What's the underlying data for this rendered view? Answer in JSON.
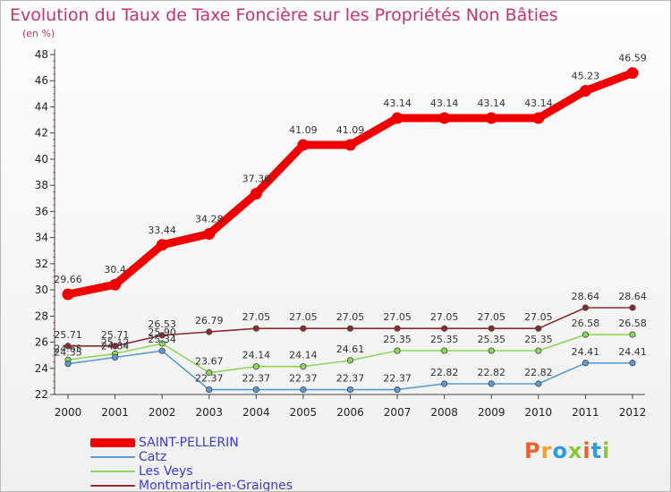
{
  "title": "Evolution du Taux de Taxe Foncière sur les Propriétés Non Bâties",
  "subtitle": "(en %)",
  "logo": {
    "text": "Proxiti",
    "colors": [
      "#e8622b",
      "#f0a32a",
      "#2d9be0",
      "#8cc63f",
      "#e8622b",
      "#2d9be0",
      "#8cc63f"
    ]
  },
  "chart_data": {
    "type": "line",
    "title": "Evolution du Taux de Taxe Foncière sur les Propriétés Non Bâties",
    "ylabel": "(en %)",
    "xlabel": "",
    "ylim": [
      22,
      48
    ],
    "y_ticks": [
      22,
      24,
      26,
      28,
      30,
      32,
      34,
      36,
      38,
      40,
      42,
      44,
      46,
      48
    ],
    "grid": false,
    "legend": "bottom-left",
    "categories": [
      "2000",
      "2001",
      "2002",
      "2003",
      "2004",
      "2005",
      "2006",
      "2007",
      "2008",
      "2009",
      "2010",
      "2011",
      "2012"
    ],
    "series": [
      {
        "name": "SAINT-PELLERIN",
        "color": "#ee0000",
        "values": [
          29.66,
          30.4,
          33.44,
          34.28,
          37.36,
          41.09,
          41.09,
          43.14,
          43.14,
          43.14,
          43.14,
          45.23,
          46.59
        ],
        "labels": [
          "29.66",
          "30.4",
          "33.44",
          "34.28",
          "37.36",
          "41.09",
          "41.09",
          "43.14",
          "43.14",
          "43.14",
          "43.14",
          "45.23",
          "46.59"
        ]
      },
      {
        "name": "Catz",
        "color": "#5b9bd5",
        "values": [
          24.35,
          24.84,
          25.34,
          22.37,
          22.37,
          22.37,
          22.37,
          22.37,
          22.82,
          22.82,
          22.82,
          24.41,
          24.41
        ],
        "labels": [
          "24.35",
          "24.84",
          "25.34",
          "22.37",
          "22.37",
          "22.37",
          "22.37",
          "22.37",
          "22.82",
          "22.82",
          "22.82",
          "24.41",
          "24.41"
        ]
      },
      {
        "name": "Les Veys",
        "color": "#8cd65a",
        "values": [
          24.65,
          25.12,
          25.9,
          23.67,
          24.14,
          24.14,
          24.61,
          25.35,
          25.35,
          25.35,
          25.35,
          26.58,
          26.58
        ],
        "labels": [
          "24.65",
          "25.12",
          "25.90",
          "23.67",
          "24.14",
          "24.14",
          "24.61",
          "25.35",
          "25.35",
          "25.35",
          "25.35",
          "26.58",
          "26.58"
        ]
      },
      {
        "name": "Montmartin-en-Graignes",
        "color": "#8b2c2c",
        "values": [
          25.71,
          25.71,
          26.53,
          26.79,
          27.05,
          27.05,
          27.05,
          27.05,
          27.05,
          27.05,
          27.05,
          28.64,
          28.64
        ],
        "labels": [
          "25.71",
          "25.71",
          "26.53",
          "26.79",
          "27.05",
          "27.05",
          "27.05",
          "27.05",
          "27.05",
          "27.05",
          "27.05",
          "28.64",
          "28.64"
        ]
      }
    ]
  }
}
